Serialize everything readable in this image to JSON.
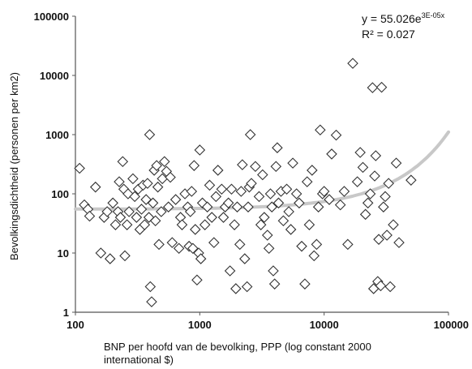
{
  "chart_data": {
    "type": "scatter",
    "xlabel_line1": "BNP per hoofd van de bevolking, PPP (log constant 2000",
    "xlabel_line2": "international $)",
    "ylabel": "Bevolkingsdichtheid (personen per km2)",
    "x_scale": "log",
    "y_scale": "log",
    "xlim": [
      100,
      100000
    ],
    "ylim": [
      1,
      100000
    ],
    "x_ticks": [
      "100",
      "1000",
      "10000",
      "100000"
    ],
    "y_ticks": [
      "1",
      "10",
      "100",
      "1000",
      "10000",
      "100000"
    ],
    "grid": false,
    "trendline": {
      "type": "exponential",
      "a": 55.026,
      "b": 3e-05,
      "equation_main": "y = 55.026e",
      "equation_exp": "3E-05x",
      "r2_text": "R² = 0.027",
      "color": "#c8c8c8"
    },
    "marker": "diamond",
    "marker_color": "#333333",
    "points": [
      [
        108,
        270
      ],
      [
        118,
        65
      ],
      [
        126,
        55
      ],
      [
        130,
        42
      ],
      [
        145,
        130
      ],
      [
        160,
        10
      ],
      [
        170,
        40
      ],
      [
        180,
        50
      ],
      [
        190,
        8
      ],
      [
        200,
        70
      ],
      [
        210,
        30
      ],
      [
        220,
        50
      ],
      [
        225,
        160
      ],
      [
        230,
        40
      ],
      [
        240,
        350
      ],
      [
        245,
        120
      ],
      [
        250,
        9
      ],
      [
        260,
        30
      ],
      [
        265,
        100
      ],
      [
        270,
        50
      ],
      [
        290,
        180
      ],
      [
        300,
        90
      ],
      [
        310,
        40
      ],
      [
        320,
        120
      ],
      [
        330,
        25
      ],
      [
        340,
        55
      ],
      [
        350,
        140
      ],
      [
        360,
        30
      ],
      [
        370,
        80
      ],
      [
        380,
        150
      ],
      [
        390,
        40
      ],
      [
        395,
        1000
      ],
      [
        400,
        2.7
      ],
      [
        410,
        1.5
      ],
      [
        420,
        70
      ],
      [
        430,
        250
      ],
      [
        440,
        35
      ],
      [
        450,
        300
      ],
      [
        460,
        130
      ],
      [
        470,
        14
      ],
      [
        490,
        50
      ],
      [
        500,
        180
      ],
      [
        520,
        350
      ],
      [
        540,
        240
      ],
      [
        560,
        60
      ],
      [
        580,
        190
      ],
      [
        600,
        15
      ],
      [
        640,
        80
      ],
      [
        680,
        12
      ],
      [
        700,
        40
      ],
      [
        720,
        30
      ],
      [
        760,
        100
      ],
      [
        800,
        60
      ],
      [
        820,
        13
      ],
      [
        840,
        50
      ],
      [
        860,
        110
      ],
      [
        880,
        12
      ],
      [
        900,
        300
      ],
      [
        920,
        25
      ],
      [
        950,
        3.5
      ],
      [
        980,
        10
      ],
      [
        1000,
        550
      ],
      [
        1020,
        8
      ],
      [
        1050,
        70
      ],
      [
        1100,
        30
      ],
      [
        1150,
        60
      ],
      [
        1200,
        140
      ],
      [
        1250,
        40
      ],
      [
        1300,
        15
      ],
      [
        1350,
        90
      ],
      [
        1400,
        250
      ],
      [
        1500,
        120
      ],
      [
        1550,
        40
      ],
      [
        1600,
        60
      ],
      [
        1700,
        70
      ],
      [
        1750,
        5
      ],
      [
        1800,
        120
      ],
      [
        1900,
        30
      ],
      [
        1950,
        2.5
      ],
      [
        2000,
        60
      ],
      [
        2100,
        14
      ],
      [
        2150,
        110
      ],
      [
        2200,
        310
      ],
      [
        2300,
        8
      ],
      [
        2400,
        2.7
      ],
      [
        2450,
        60
      ],
      [
        2500,
        130
      ],
      [
        2550,
        1000
      ],
      [
        2600,
        150
      ],
      [
        2800,
        290
      ],
      [
        3000,
        90
      ],
      [
        3100,
        30
      ],
      [
        3200,
        210
      ],
      [
        3300,
        40
      ],
      [
        3500,
        20
      ],
      [
        3600,
        12
      ],
      [
        3700,
        100
      ],
      [
        3800,
        60
      ],
      [
        3900,
        5
      ],
      [
        4000,
        3
      ],
      [
        4100,
        290
      ],
      [
        4200,
        600
      ],
      [
        4300,
        70
      ],
      [
        4500,
        110
      ],
      [
        4700,
        35
      ],
      [
        5000,
        120
      ],
      [
        5200,
        50
      ],
      [
        5400,
        25
      ],
      [
        5600,
        330
      ],
      [
        6000,
        100
      ],
      [
        6300,
        70
      ],
      [
        6600,
        13
      ],
      [
        7000,
        3
      ],
      [
        7300,
        160
      ],
      [
        7600,
        30
      ],
      [
        8000,
        250
      ],
      [
        8300,
        9
      ],
      [
        8700,
        14
      ],
      [
        9000,
        60
      ],
      [
        9300,
        1200
      ],
      [
        9700,
        100
      ],
      [
        10000,
        110
      ],
      [
        11000,
        80
      ],
      [
        11500,
        470
      ],
      [
        12500,
        980
      ],
      [
        13500,
        65
      ],
      [
        14500,
        110
      ],
      [
        15500,
        14
      ],
      [
        17000,
        16000
      ],
      [
        18500,
        160
      ],
      [
        19500,
        500
      ],
      [
        20500,
        280
      ],
      [
        21500,
        45
      ],
      [
        22500,
        70
      ],
      [
        23500,
        100
      ],
      [
        24500,
        6200
      ],
      [
        25000,
        2.5
      ],
      [
        25500,
        200
      ],
      [
        26000,
        440
      ],
      [
        27000,
        3.3
      ],
      [
        27500,
        17
      ],
      [
        28500,
        2.8
      ],
      [
        29000,
        6300
      ],
      [
        30000,
        60
      ],
      [
        31000,
        90
      ],
      [
        32000,
        20
      ],
      [
        33000,
        150
      ],
      [
        34000,
        2.7
      ],
      [
        36000,
        30
      ],
      [
        38000,
        330
      ],
      [
        40000,
        15
      ],
      [
        50000,
        170
      ]
    ]
  }
}
